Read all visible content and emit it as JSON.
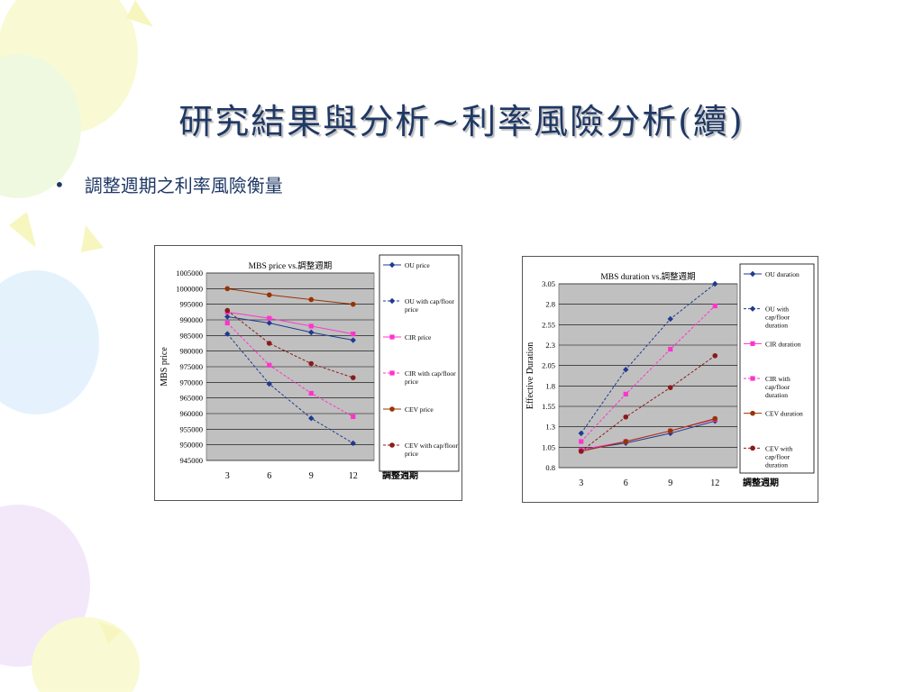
{
  "slide": {
    "title": "研究結果與分析~利率風險分析(續)",
    "bullet_symbol": "•",
    "bullet_text": "調整週期之利率風險衡量"
  },
  "colors": {
    "title": "#1f3864",
    "ou": "#1f3a8f",
    "cir": "#ff33cc",
    "cev": "#993300",
    "cev_capfloor": "#8b1a1a",
    "plot_bg": "#c0c0c0"
  },
  "chart_data": [
    {
      "type": "line",
      "title": "MBS price vs.調整週期",
      "xlabel": "調整週期",
      "ylabel": "MBS price",
      "categories": [
        "3",
        "6",
        "9",
        "12"
      ],
      "ylim": [
        945000,
        1005000
      ],
      "yticks": [
        "1005000",
        "1000000",
        "995000",
        "990000",
        "985000",
        "980000",
        "975000",
        "970000",
        "965000",
        "960000",
        "955000",
        "950000",
        "945000"
      ],
      "grid": true,
      "legend": "right",
      "series": [
        {
          "name": "OU price",
          "values": [
            991000,
            989000,
            986000,
            983500
          ],
          "dashed": false,
          "color_key": "ou",
          "marker": "diamond"
        },
        {
          "name": "OU with cap/floor price",
          "values": [
            985500,
            969500,
            958500,
            950500
          ],
          "dashed": true,
          "color_key": "ou",
          "marker": "diamond"
        },
        {
          "name": "CIR price",
          "values": [
            992500,
            990500,
            988000,
            985500
          ],
          "dashed": false,
          "color_key": "cir",
          "marker": "square"
        },
        {
          "name": "CIR with cap/floor price",
          "values": [
            989000,
            975500,
            966500,
            959000
          ],
          "dashed": true,
          "color_key": "cir",
          "marker": "square"
        },
        {
          "name": "CEV price",
          "values": [
            1000000,
            998000,
            996500,
            995000
          ],
          "dashed": false,
          "color_key": "cev",
          "marker": "circle"
        },
        {
          "name": "CEV with cap/floor price",
          "values": [
            993000,
            982500,
            976000,
            971500
          ],
          "dashed": true,
          "color_key": "cev_capfloor",
          "marker": "circle"
        }
      ]
    },
    {
      "type": "line",
      "title": "MBS duration vs.調整週期",
      "xlabel": "調整週期",
      "ylabel": "Effective Duration",
      "categories": [
        "3",
        "6",
        "9",
        "12"
      ],
      "ylim": [
        0.8,
        3.05
      ],
      "yticks": [
        "3.05",
        "2.8",
        "2.55",
        "2.3",
        "2.05",
        "1.8",
        "1.55",
        "1.3",
        "1.05",
        "0.8"
      ],
      "grid": true,
      "legend": "right",
      "series": [
        {
          "name": "OU duration",
          "values": [
            1.02,
            1.1,
            1.22,
            1.37
          ],
          "dashed": false,
          "color_key": "ou",
          "marker": "diamond"
        },
        {
          "name": "OU with cap/floor duration",
          "values": [
            1.22,
            2.0,
            2.62,
            3.05
          ],
          "dashed": true,
          "color_key": "ou",
          "marker": "diamond"
        },
        {
          "name": "CIR duration",
          "values": [
            1.02,
            1.12,
            1.25,
            1.39
          ],
          "dashed": false,
          "color_key": "cir",
          "marker": "square"
        },
        {
          "name": "CIR with cap/floor duration",
          "values": [
            1.12,
            1.7,
            2.25,
            2.78
          ],
          "dashed": true,
          "color_key": "cir",
          "marker": "square"
        },
        {
          "name": "CEV duration",
          "values": [
            1.0,
            1.12,
            1.25,
            1.4
          ],
          "dashed": false,
          "color_key": "cev",
          "marker": "circle"
        },
        {
          "name": "CEV with cap/floor duration",
          "values": [
            1.0,
            1.42,
            1.78,
            2.17
          ],
          "dashed": true,
          "color_key": "cev_capfloor",
          "marker": "circle"
        }
      ]
    }
  ]
}
